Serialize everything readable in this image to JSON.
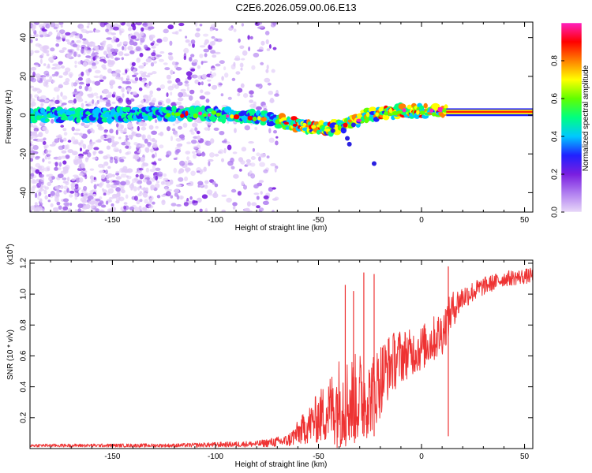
{
  "title": "C2E6.2026.059.00.06.E13",
  "chart_data": [
    {
      "type": "heatmap",
      "title": "C2E6.2026.059.00.06.E13",
      "xlabel": "Height of straight line (km)",
      "ylabel": "Frequency (Hz)",
      "xlim": [
        -190,
        54
      ],
      "ylim": [
        -50,
        48
      ],
      "xticks": [
        -150,
        -100,
        -50,
        0,
        50
      ],
      "yticks": [
        -40,
        -20,
        0,
        20,
        40
      ],
      "colorbar": {
        "label": "Normalized spectral amplitude",
        "range": [
          0.0,
          1.0
        ],
        "ticks": [
          "0.0",
          "0.2",
          "0.4",
          "0.6",
          "0.8"
        ],
        "colors": [
          "#e8d8f8",
          "#b07ef0",
          "#7a1ee0",
          "#2020ff",
          "#00c8ff",
          "#00ff80",
          "#60ff00",
          "#ffff00",
          "#ff8000",
          "#ff0000",
          "#ff20c0"
        ]
      },
      "ridge": {
        "x": [
          -185,
          -160,
          -130,
          -110,
          -90,
          -75,
          -60,
          -45,
          -35,
          -28,
          -20,
          -10,
          0,
          10,
          12,
          54
        ],
        "freq": [
          0,
          0,
          0.5,
          0.5,
          0,
          -2,
          -5,
          -7,
          -4,
          -1,
          1,
          2,
          2,
          3,
          2,
          2
        ]
      }
    },
    {
      "type": "line",
      "xlabel": "Height of straight line (km)",
      "ylabel": "SNR (10 * v/v)",
      "scale_label": "(x10",
      "scale_exp": "4",
      "xlim": [
        -190,
        54
      ],
      "ylim": [
        0,
        1.22
      ],
      "xticks": [
        -150,
        -100,
        -50,
        0,
        50
      ],
      "yticks": [
        "0.2",
        "0.4",
        "0.6",
        "0.8",
        "1.0",
        "1.2"
      ],
      "color": "#ee3333",
      "trend": {
        "x": [
          -190,
          -120,
          -80,
          -65,
          -55,
          -45,
          -40,
          -35,
          -30,
          -25,
          -20,
          -15,
          -10,
          -5,
          0,
          5,
          10,
          15,
          20,
          30,
          40,
          54
        ],
        "mean": [
          0.02,
          0.02,
          0.03,
          0.05,
          0.15,
          0.25,
          0.3,
          0.3,
          0.33,
          0.33,
          0.45,
          0.55,
          0.6,
          0.62,
          0.65,
          0.7,
          0.75,
          0.9,
          0.98,
          1.05,
          1.1,
          1.12
        ],
        "spread": [
          0.01,
          0.012,
          0.02,
          0.04,
          0.12,
          0.22,
          0.3,
          0.3,
          0.3,
          0.25,
          0.25,
          0.2,
          0.18,
          0.15,
          0.15,
          0.15,
          0.15,
          0.12,
          0.08,
          0.06,
          0.05,
          0.05
        ]
      },
      "peaks": [
        {
          "x": -37,
          "y": 1.06
        },
        {
          "x": -33,
          "y": 1.02
        },
        {
          "x": -28,
          "y": 1.14
        },
        {
          "x": -23,
          "y": 1.13
        },
        {
          "x": 13,
          "y": 1.18
        }
      ]
    }
  ]
}
